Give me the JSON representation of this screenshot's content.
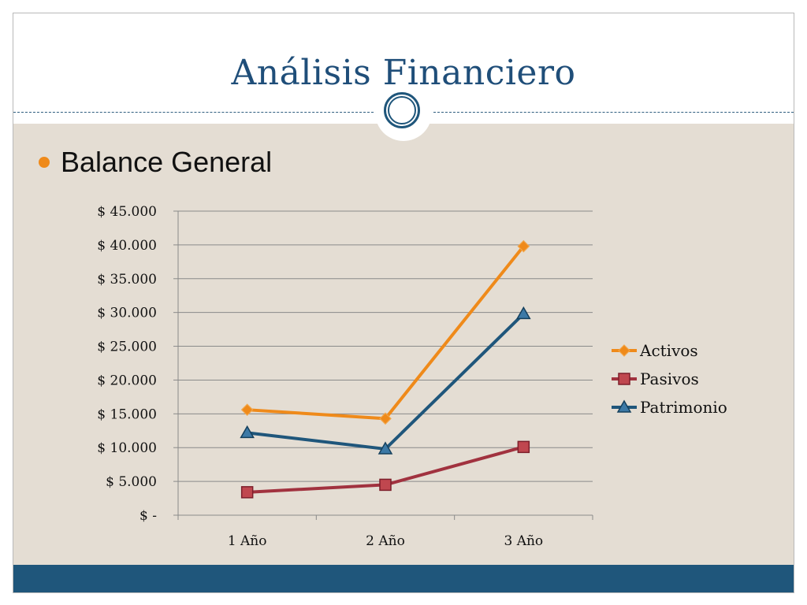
{
  "slide": {
    "title": "Análisis  Financiero",
    "bullet": "Balance General"
  },
  "colors": {
    "title": "#1f4e79",
    "content_background": "#e4ddd3",
    "footer_band": "#1f567b",
    "bullet": "#ef8a1a",
    "gridline": "#8a8a8a"
  },
  "chart_data": {
    "type": "line",
    "title": "",
    "xlabel": "",
    "ylabel": "",
    "categories": [
      "1 Año",
      "2 Año",
      "3 Año"
    ],
    "ylim": [
      0,
      45000
    ],
    "y_tick_values": [
      0,
      5000,
      10000,
      15000,
      20000,
      25000,
      30000,
      35000,
      40000,
      45000
    ],
    "y_tick_labels": [
      "$ -",
      "$ 5.000",
      "$ 10.000",
      "$ 15.000",
      "$ 20.000",
      "$ 25.000",
      "$ 30.000",
      "$ 35.000",
      "$ 40.000",
      "$ 45.000"
    ],
    "grid": true,
    "legend_position": "right",
    "series": [
      {
        "name": "Activos",
        "values": [
          15600,
          14300,
          39800
        ],
        "color": "#ef8a1a",
        "marker": "diamond"
      },
      {
        "name": "Pasivos",
        "values": [
          3400,
          4500,
          10100
        ],
        "color": "#a1323f",
        "marker": "square"
      },
      {
        "name": "Patrimonio",
        "values": [
          12200,
          9800,
          29800
        ],
        "color": "#1f567b",
        "marker": "triangle"
      }
    ]
  }
}
